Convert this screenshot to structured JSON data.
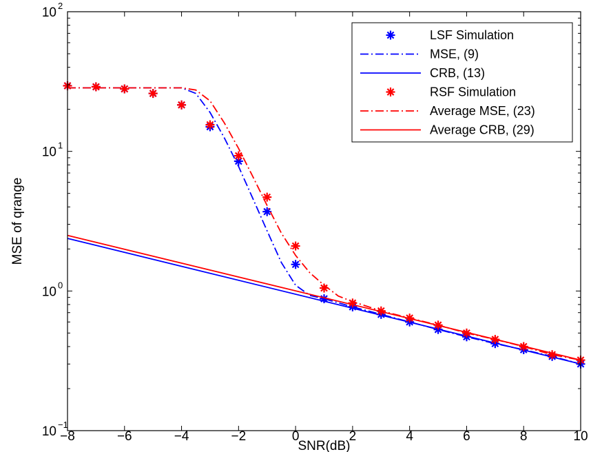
{
  "chart_data": {
    "type": "line",
    "xlabel": "SNR(dB)",
    "ylabel": "MSE of qrange",
    "xlim": [
      -8,
      10
    ],
    "ylim": [
      0.1,
      100
    ],
    "yscale": "log",
    "grid": false,
    "legend_position": "top-right",
    "x_ticks": [
      -8,
      -6,
      -4,
      -2,
      0,
      2,
      4,
      6,
      8,
      10
    ],
    "x_tick_labels": [
      "−8",
      "−6",
      "−4",
      "−2",
      "0",
      "2",
      "4",
      "6",
      "8",
      "10"
    ],
    "y_ticks": [
      0.1,
      1,
      10,
      100
    ],
    "y_tick_labels": [
      {
        "base": "10",
        "exp": "−1"
      },
      {
        "base": "10",
        "exp": "0"
      },
      {
        "base": "10",
        "exp": "1"
      },
      {
        "base": "10",
        "exp": "2"
      }
    ],
    "series": [
      {
        "name": "LSF Simulation",
        "style": "markers",
        "marker": "asterisk",
        "color": "#0000FF",
        "x": [
          -8,
          -7,
          -6,
          -5,
          -4,
          -3,
          -2,
          -1,
          0,
          1,
          2,
          3,
          4,
          5,
          6,
          7,
          8,
          9,
          10
        ],
        "y": [
          29.5,
          29,
          28,
          26,
          21.5,
          15,
          8.5,
          3.7,
          1.55,
          0.88,
          0.77,
          0.68,
          0.6,
          0.53,
          0.47,
          0.42,
          0.38,
          0.34,
          0.3
        ]
      },
      {
        "name": "MSE, (9)",
        "style": "dashdot",
        "color": "#0000FF",
        "x": [
          -8,
          -7,
          -6,
          -5,
          -4,
          -3.5,
          -3,
          -2.5,
          -2,
          -1.5,
          -1,
          -0.5,
          0,
          0.5,
          1,
          2,
          3,
          4,
          5,
          6,
          7,
          8,
          9,
          10
        ],
        "y": [
          28.5,
          28.5,
          28.5,
          28.5,
          28.5,
          26,
          19,
          12.5,
          7.8,
          4.6,
          2.7,
          1.6,
          1.1,
          0.93,
          0.88,
          0.77,
          0.68,
          0.6,
          0.53,
          0.47,
          0.42,
          0.38,
          0.34,
          0.3
        ]
      },
      {
        "name": "CRB, (13)",
        "style": "solid",
        "color": "#0000FF",
        "x": [
          -8,
          10
        ],
        "y": [
          2.38,
          0.3
        ]
      },
      {
        "name": "RSF Simulation",
        "style": "markers",
        "marker": "asterisk",
        "color": "#FF0000",
        "x": [
          -8,
          -7,
          -6,
          -5,
          -4,
          -3,
          -2,
          -1,
          0,
          1,
          2,
          3,
          4,
          5,
          6,
          7,
          8,
          9,
          10
        ],
        "y": [
          29.5,
          29,
          28,
          26,
          21.5,
          15.5,
          9.3,
          4.7,
          2.1,
          1.05,
          0.82,
          0.72,
          0.64,
          0.57,
          0.5,
          0.45,
          0.4,
          0.35,
          0.32
        ]
      },
      {
        "name": "Average MSE, (23)",
        "style": "dashdot",
        "color": "#FF0000",
        "x": [
          -8,
          -7,
          -6,
          -5,
          -4,
          -3.5,
          -3,
          -2.5,
          -2,
          -1.5,
          -1,
          -0.5,
          0,
          0.5,
          1,
          1.5,
          2,
          3,
          4,
          5,
          6,
          7,
          8,
          9,
          10
        ],
        "y": [
          28.5,
          28.5,
          28.5,
          28.5,
          28.5,
          27.5,
          23,
          16,
          10.5,
          6.6,
          4.1,
          2.6,
          1.8,
          1.35,
          1.1,
          0.92,
          0.84,
          0.72,
          0.64,
          0.57,
          0.5,
          0.45,
          0.4,
          0.35,
          0.32
        ]
      },
      {
        "name": "Average CRB, (29)",
        "style": "solid",
        "color": "#FF0000",
        "x": [
          -8,
          10
        ],
        "y": [
          2.5,
          0.32
        ]
      }
    ]
  }
}
